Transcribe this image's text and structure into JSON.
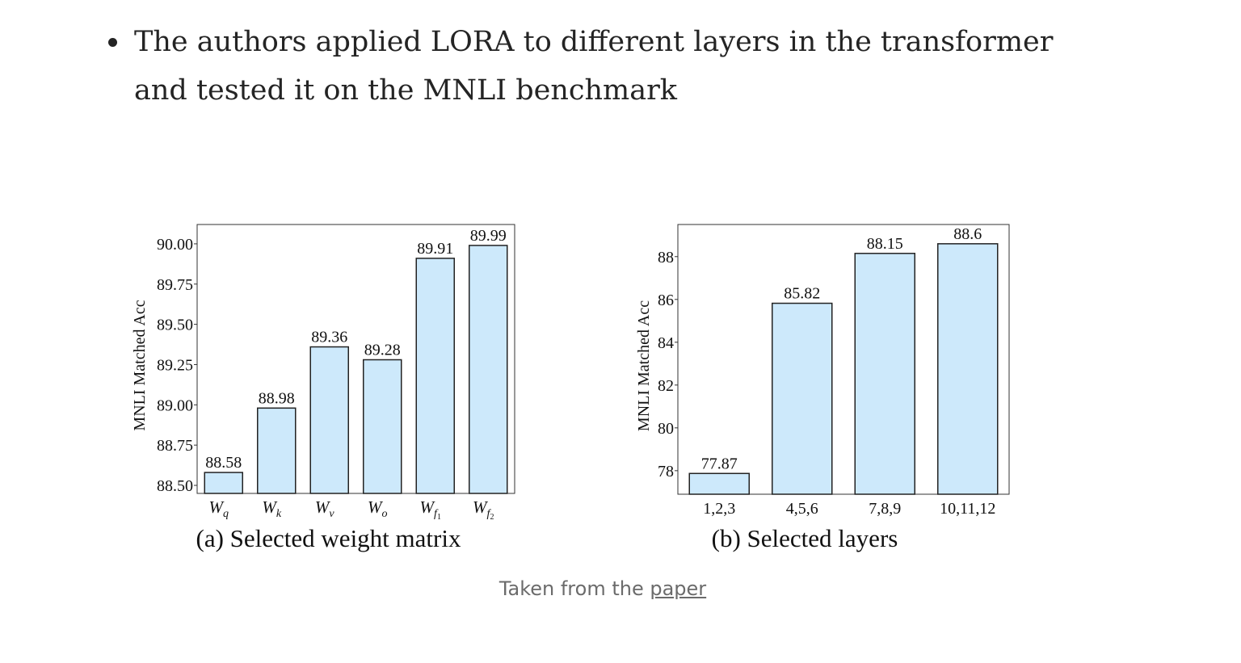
{
  "bullet": {
    "text": "The authors applied LORA to different layers in the transformer and tested it on the MNLI benchmark"
  },
  "caption": {
    "prefix": "Taken from the ",
    "link_text": "paper"
  },
  "colors": {
    "bar_fill": "#cde9fb",
    "bar_stroke": "#222222",
    "text": "#242424",
    "caption": "#6b6b6b"
  },
  "chart_data": [
    {
      "type": "bar",
      "title": "(a) Selected weight matrix",
      "ylabel": "MNLI Matched Acc",
      "xlabel": "",
      "categories": [
        {
          "base": "W",
          "sub": "q"
        },
        {
          "base": "W",
          "sub": "k"
        },
        {
          "base": "W",
          "sub": "v"
        },
        {
          "base": "W",
          "sub": "o"
        },
        {
          "base": "W",
          "sub": "f",
          "subsub": "1"
        },
        {
          "base": "W",
          "sub": "f",
          "subsub": "2"
        }
      ],
      "values": [
        88.58,
        88.98,
        89.36,
        89.28,
        89.91,
        89.99
      ],
      "value_labels": [
        "88.58",
        "88.98",
        "89.36",
        "89.28",
        "89.91",
        "89.99"
      ],
      "ylim": [
        88.45,
        90.12
      ],
      "yticks": [
        88.5,
        88.75,
        89.0,
        89.25,
        89.5,
        89.75,
        90.0
      ],
      "ytick_labels": [
        "88.50",
        "88.75",
        "89.00",
        "89.25",
        "89.50",
        "89.75",
        "90.00"
      ],
      "grid": false
    },
    {
      "type": "bar",
      "title": "(b) Selected layers",
      "ylabel": "MNLI Matched Acc",
      "xlabel": "",
      "categories": [
        "1,2,3",
        "4,5,6",
        "7,8,9",
        "10,11,12"
      ],
      "values": [
        77.87,
        85.82,
        88.15,
        88.6
      ],
      "value_labels": [
        "77.87",
        "85.82",
        "88.15",
        "88.6"
      ],
      "ylim": [
        76.9,
        89.5
      ],
      "yticks": [
        78,
        80,
        82,
        84,
        86,
        88
      ],
      "ytick_labels": [
        "78",
        "80",
        "82",
        "84",
        "86",
        "88"
      ],
      "grid": false
    }
  ]
}
